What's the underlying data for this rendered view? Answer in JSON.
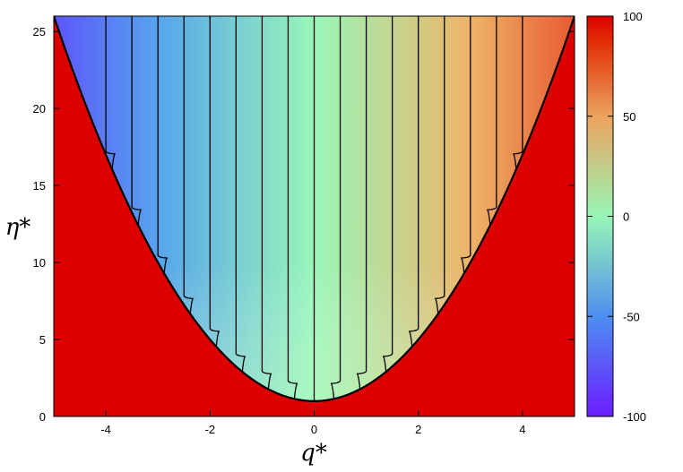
{
  "chart_data": {
    "type": "heatmap",
    "title": "",
    "xlabel": "q*",
    "ylabel": "η*",
    "xlim": [
      -5,
      5
    ],
    "ylim": [
      0,
      26
    ],
    "x_ticks": [
      -4,
      -2,
      0,
      2,
      4
    ],
    "y_ticks": [
      0,
      5,
      10,
      15,
      20,
      25
    ],
    "boundary": {
      "description": "parabola",
      "vertex_y": 1,
      "curvature": 1
    },
    "outside_color": "#dd0000",
    "contour_color": "#000000",
    "contour_levels": [
      -80,
      -70,
      -60,
      -50,
      -40,
      -30,
      -20,
      -10,
      0,
      10,
      20,
      30,
      40,
      50,
      60,
      70,
      80
    ],
    "colorbar": {
      "range": [
        -100,
        100
      ],
      "ticks": [
        -100,
        -50,
        0,
        50,
        100
      ],
      "colors": [
        "#6a1bff",
        "#4c78f2",
        "#96f2c0",
        "#e9a961",
        "#ea2a00",
        "#dd0000"
      ]
    }
  }
}
